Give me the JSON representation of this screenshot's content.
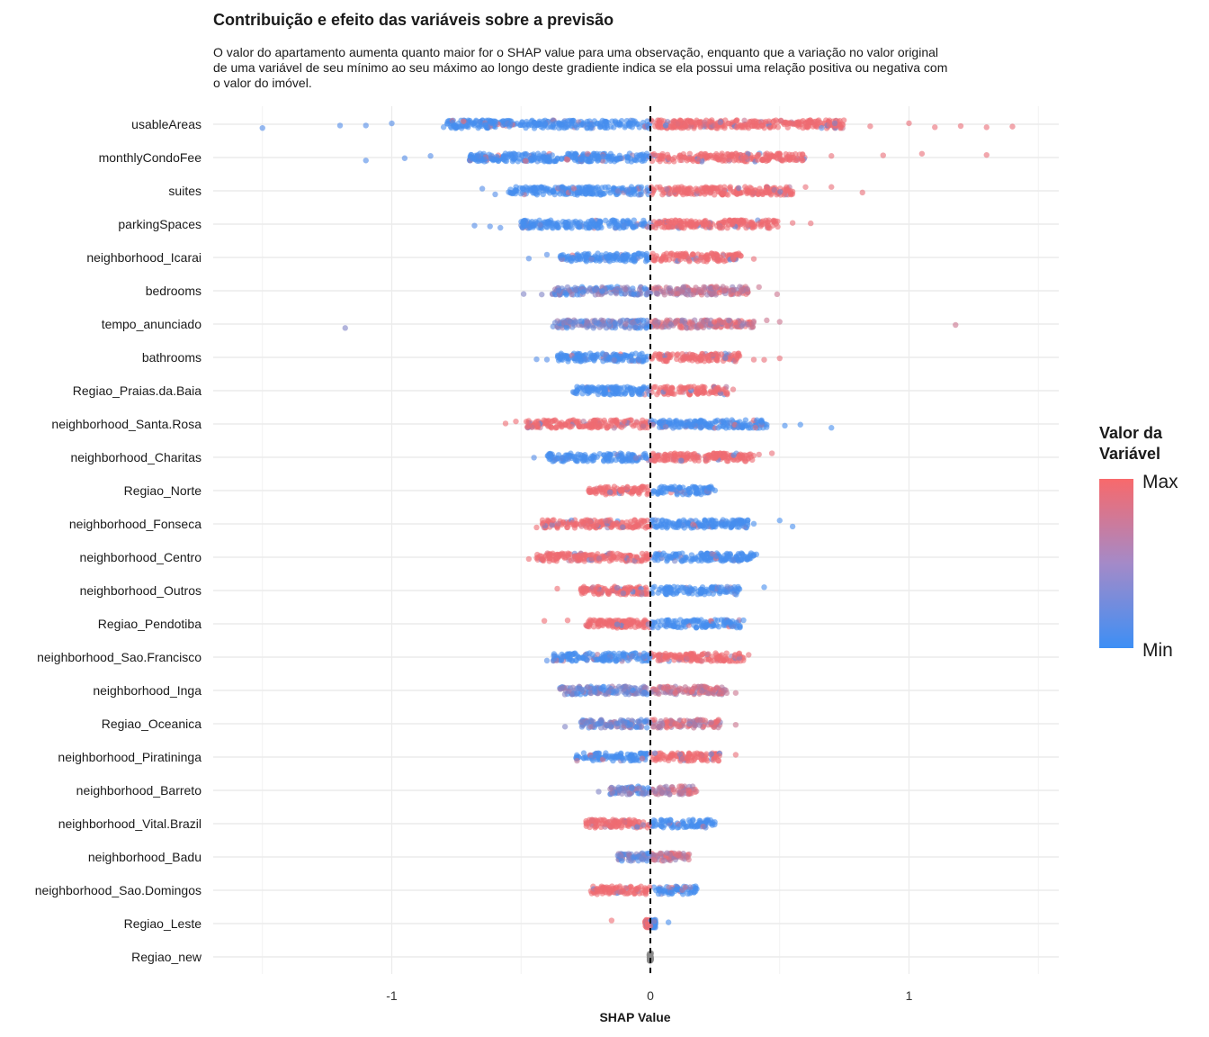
{
  "title": "Contribuição e efeito das variáveis sobre a previsão",
  "subtitle": "O valor do apartamento aumenta quanto maior for o SHAP value para uma observação, enquanto que a variação no valor original de uma variável de seu mínimo ao seu máximo ao longo deste gradiente indica se ela possui uma relação positiva ou negativa com o valor do imóvel.",
  "colors": {
    "max": "#f8696b",
    "min": "#3d8ff5",
    "neutral": "#8a8a8a",
    "zero_line": "#000000",
    "grid": "#ebebeb"
  },
  "legend": {
    "title_line1": "Valor da",
    "title_line2": "Variável",
    "max_label": "Max",
    "min_label": "Min"
  },
  "chart_data": {
    "type": "scatter",
    "xlabel": "SHAP Value",
    "ylabel": "",
    "xlim": [
      -1.6,
      1.6
    ],
    "x_ticks": [
      -1,
      0,
      1
    ],
    "x_tick_labels": [
      "-1",
      "0",
      "1"
    ],
    "reference_line_x": 0,
    "grid": true,
    "legend_position": "right",
    "features": [
      {
        "name": "usableAreas",
        "core": [
          -0.8,
          0.75
        ],
        "ext_low": [
          -1.5,
          -1.2,
          -1.1,
          -1.0
        ],
        "ext_high": [
          0.85,
          1.0,
          1.1,
          1.2,
          1.3,
          1.4
        ],
        "low_side": "min",
        "pattern": "split"
      },
      {
        "name": "monthlyCondoFee",
        "core": [
          -0.7,
          0.6
        ],
        "ext_low": [
          -1.1,
          -0.95,
          -0.85
        ],
        "ext_high": [
          0.7,
          0.9,
          1.05,
          1.3
        ],
        "low_side": "min",
        "pattern": "split"
      },
      {
        "name": "suites",
        "core": [
          -0.55,
          0.55
        ],
        "ext_low": [
          -0.65,
          -0.6
        ],
        "ext_high": [
          0.6,
          0.7,
          0.82
        ],
        "low_side": "min",
        "pattern": "split"
      },
      {
        "name": "parkingSpaces",
        "core": [
          -0.5,
          0.5
        ],
        "ext_low": [
          -0.68,
          -0.62,
          -0.58
        ],
        "ext_high": [
          0.55,
          0.62
        ],
        "low_side": "min",
        "pattern": "split"
      },
      {
        "name": "neighborhood_Icarai",
        "core": [
          -0.35,
          0.35
        ],
        "ext_low": [
          -0.47,
          -0.4
        ],
        "ext_high": [
          0.4
        ],
        "low_side": "min",
        "pattern": "split"
      },
      {
        "name": "bedrooms",
        "core": [
          -0.38,
          0.38
        ],
        "ext_low": [
          -0.49,
          -0.42
        ],
        "ext_high": [
          0.42,
          0.49
        ],
        "low_side": "min",
        "pattern": "mixed"
      },
      {
        "name": "tempo_anunciado",
        "core": [
          -0.38,
          0.4
        ],
        "ext_low": [
          -1.18
        ],
        "ext_high": [
          0.45,
          0.5,
          1.18
        ],
        "low_side": "min",
        "pattern": "mixed"
      },
      {
        "name": "bathrooms",
        "core": [
          -0.36,
          0.35
        ],
        "ext_low": [
          -0.44,
          -0.4
        ],
        "ext_high": [
          0.4,
          0.44,
          0.5
        ],
        "low_side": "min",
        "pattern": "split"
      },
      {
        "name": "Regiao_Praias.da.Baia",
        "core": [
          -0.3,
          0.3
        ],
        "ext_low": [],
        "ext_high": [
          0.32
        ],
        "low_side": "min",
        "pattern": "split"
      },
      {
        "name": "neighborhood_Santa.Rosa",
        "core": [
          -0.48,
          0.45
        ],
        "ext_low": [
          -0.56,
          -0.52
        ],
        "ext_high": [
          0.52,
          0.58,
          0.7
        ],
        "low_side": "max",
        "pattern": "split"
      },
      {
        "name": "neighborhood_Charitas",
        "core": [
          -0.4,
          0.4
        ],
        "ext_low": [
          -0.45
        ],
        "ext_high": [
          0.42,
          0.47
        ],
        "low_side": "min",
        "pattern": "split"
      },
      {
        "name": "Regiao_Norte",
        "core": [
          -0.24,
          0.24
        ],
        "ext_low": [],
        "ext_high": [
          0.25
        ],
        "low_side": "max",
        "pattern": "split"
      },
      {
        "name": "neighborhood_Fonseca",
        "core": [
          -0.42,
          0.38
        ],
        "ext_low": [
          -0.44
        ],
        "ext_high": [
          0.4,
          0.5,
          0.55
        ],
        "low_side": "max",
        "pattern": "split"
      },
      {
        "name": "neighborhood_Centro",
        "core": [
          -0.44,
          0.4
        ],
        "ext_low": [
          -0.47
        ],
        "ext_high": [
          0.41
        ],
        "low_side": "max",
        "pattern": "split"
      },
      {
        "name": "neighborhood_Outros",
        "core": [
          -0.27,
          0.35
        ],
        "ext_low": [
          -0.36
        ],
        "ext_high": [
          0.44
        ],
        "low_side": "max",
        "pattern": "split"
      },
      {
        "name": "Regiao_Pendotiba",
        "core": [
          -0.25,
          0.35
        ],
        "ext_low": [
          -0.41,
          -0.32
        ],
        "ext_high": [
          0.36
        ],
        "low_side": "max",
        "pattern": "split"
      },
      {
        "name": "neighborhood_Sao.Francisco",
        "core": [
          -0.38,
          0.36
        ],
        "ext_low": [
          -0.4
        ],
        "ext_high": [
          0.38
        ],
        "low_side": "min",
        "pattern": "split"
      },
      {
        "name": "neighborhood_Inga",
        "core": [
          -0.35,
          0.3
        ],
        "ext_low": [],
        "ext_high": [
          0.33
        ],
        "low_side": "max",
        "pattern": "mixed"
      },
      {
        "name": "Regiao_Oceanica",
        "core": [
          -0.27,
          0.27
        ],
        "ext_low": [
          -0.33
        ],
        "ext_high": [
          0.33
        ],
        "low_side": "min",
        "pattern": "mixed"
      },
      {
        "name": "neighborhood_Piratininga",
        "core": [
          -0.29,
          0.27
        ],
        "ext_low": [],
        "ext_high": [
          0.33
        ],
        "low_side": "min",
        "pattern": "split"
      },
      {
        "name": "neighborhood_Barreto",
        "core": [
          -0.16,
          0.18
        ],
        "ext_low": [
          -0.2
        ],
        "ext_high": [],
        "low_side": "min",
        "pattern": "mixed"
      },
      {
        "name": "neighborhood_Vital.Brazil",
        "core": [
          -0.25,
          0.25
        ],
        "ext_low": [],
        "ext_high": [],
        "low_side": "max",
        "pattern": "split"
      },
      {
        "name": "neighborhood_Badu",
        "core": [
          -0.13,
          0.15
        ],
        "ext_low": [],
        "ext_high": [],
        "low_side": "min",
        "pattern": "mixed"
      },
      {
        "name": "neighborhood_Sao.Domingos",
        "core": [
          -0.23,
          0.18
        ],
        "ext_low": [],
        "ext_high": [],
        "low_side": "max",
        "pattern": "split"
      },
      {
        "name": "Regiao_Leste",
        "core": [
          -0.02,
          0.02
        ],
        "ext_low": [
          -0.15
        ],
        "ext_high": [
          0.07
        ],
        "low_side": "max",
        "pattern": "split"
      },
      {
        "name": "Regiao_new",
        "core": [
          0,
          0
        ],
        "ext_low": [],
        "ext_high": [],
        "low_side": "none",
        "pattern": "none"
      }
    ]
  }
}
